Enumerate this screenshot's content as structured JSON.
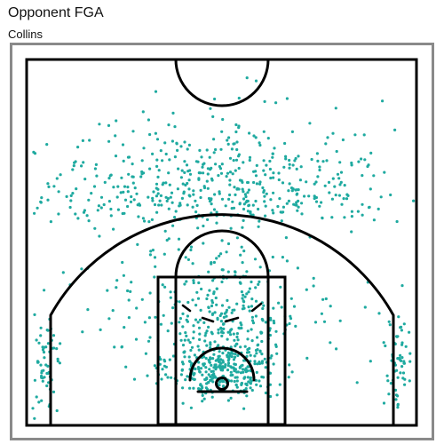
{
  "header": {
    "title": "Opponent FGA",
    "subtitle": "Collins"
  },
  "colors": {
    "shot": "#1faaa0",
    "court_lines": "#000000",
    "frame": "#8a8a8a"
  },
  "chart_data": {
    "type": "scatter",
    "title": "Opponent FGA",
    "subtitle": "Collins",
    "xlabel": "",
    "ylabel": "",
    "grid": false,
    "legend": "none",
    "units": "ft",
    "court": "half-court",
    "xlim": [
      -25,
      25
    ],
    "ylim": [
      -5.25,
      41.75
    ],
    "series": [
      {
        "marker": "dot",
        "color": "#1faaa0",
        "clusters": [
          {
            "region": "restricted-area",
            "cx": 0,
            "cy": 1.8,
            "sx": 3.4,
            "sy": 1.9,
            "n": 300
          },
          {
            "region": "paint",
            "cx": 0,
            "cy": 8.5,
            "sx": 5.0,
            "sy": 4.5,
            "n": 240
          },
          {
            "region": "midrange-arc",
            "cx": 0,
            "cy": 12,
            "sx": 11,
            "sy": 6,
            "n": 150
          },
          {
            "region": "above-break-three",
            "cx": 0,
            "cy": 21,
            "sx": 12,
            "sy": 6,
            "n": 480
          },
          {
            "region": "corner-three-left",
            "cx": -22.6,
            "cy": 2,
            "sx": 0.9,
            "sy": 3.2,
            "n": 60
          },
          {
            "region": "corner-three-right",
            "cx": 22.6,
            "cy": 2,
            "sx": 0.9,
            "sy": 3.2,
            "n": 60
          },
          {
            "region": "deep",
            "cx": 0,
            "cy": 29,
            "sx": 14,
            "sy": 3,
            "n": 35
          }
        ]
      }
    ]
  }
}
